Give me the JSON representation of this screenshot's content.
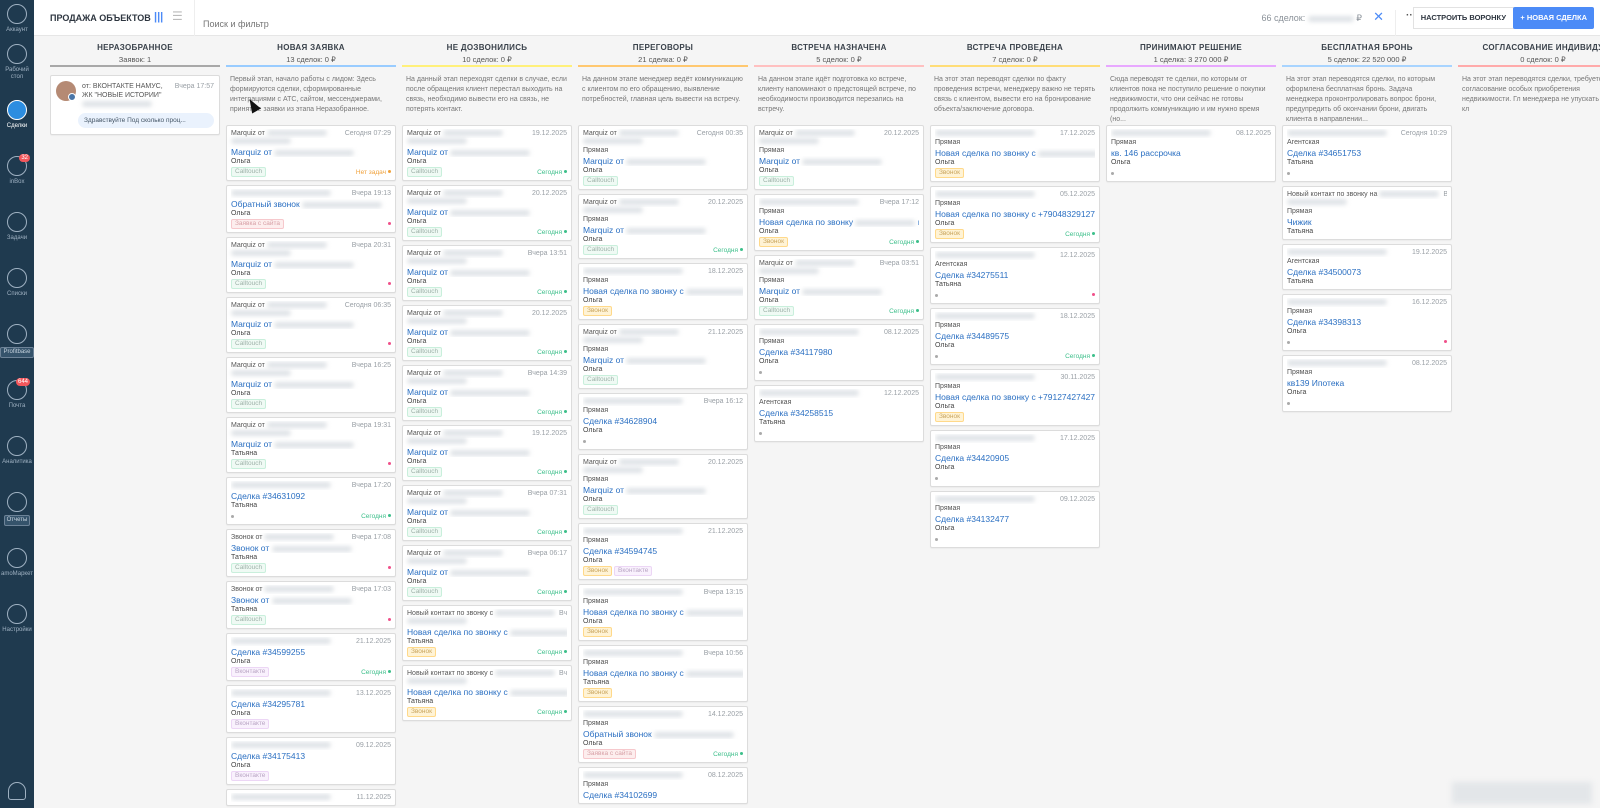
{
  "sidebar": {
    "items": [
      {
        "label": "Аккаунт",
        "icon": "account-icon"
      },
      {
        "label": "Рабочий стол",
        "icon": "dashboard-icon"
      },
      {
        "label": "Сделки",
        "icon": "deals-icon",
        "active": true
      },
      {
        "label": "inBox",
        "icon": "inbox-icon",
        "badge": "32"
      },
      {
        "label": "Задачи",
        "icon": "tasks-icon"
      },
      {
        "label": "Списки",
        "icon": "lists-icon"
      },
      {
        "label": "Profitbase",
        "icon": "profitbase-icon",
        "pill": true
      },
      {
        "label": "Почта",
        "icon": "mail-icon",
        "badge": "644"
      },
      {
        "label": "Аналитика",
        "icon": "analytics-icon"
      },
      {
        "label": "Отчеты",
        "icon": "reports-icon",
        "pill": true
      },
      {
        "label": "amoМаркет",
        "icon": "market-icon"
      },
      {
        "label": "Настройки",
        "icon": "settings-icon"
      }
    ]
  },
  "header": {
    "title": "ПРОДАЖА ОБЪЕКТОВ",
    "search_placeholder": "Поиск и фильтр",
    "total_prefix": "66 сделок:",
    "total_suffix": "₽",
    "more": "···",
    "setup_button": "НАСТРОИТЬ ВОРОНКУ",
    "new_button": "+ НОВАЯ СДЕЛКА"
  },
  "colors": {
    "accent": "#4c8bf7",
    "link": "#2a6fc2",
    "sidebar": "#1f3a4f",
    "today": "#3cbf8a",
    "no_tasks": "#f0a23c",
    "overdue_dot": "#f0508a"
  },
  "unsorted_card": {
    "from": "от: ВКОНТАКТЕ НАМУС, ЖК \"НОВЫЕ ИСТОРИИ\"",
    "date": "Вчера 17:57",
    "message": "Здравствуйте Под сколько проц..."
  },
  "columns": [
    {
      "name": "НЕРАЗОБРАННОЕ",
      "summary": "Заявок: 1",
      "color": "#a8a8a8",
      "description": "",
      "cards": []
    },
    {
      "name": "НОВАЯ ЗАЯВКА",
      "summary": "13 сделок: 0 ₽",
      "color": "#99ccff",
      "description": "Первый этап, начало работы с лидом: Здесь формируются сделки, сформированные интеграциями с АТС, сайтом, мессенджерами, принятые заявки из этапа Неразобранное.",
      "cards": [
        {
          "head": "Marquiz от",
          "extra": true,
          "date": "Сегодня 07:29",
          "title": "Marquiz от",
          "resp": "Ольга",
          "tags": [
            "Calltouch"
          ],
          "status": "none",
          "status_text": "Нет задач"
        },
        {
          "head": "",
          "date": "Вчера 19:13",
          "title": "Обратный звонок",
          "resp": "Ольга",
          "tags": [
            "Заявка с сайта"
          ],
          "status": "dot"
        },
        {
          "head": "Marquiz от",
          "extra": true,
          "date": "Вчера 20:31",
          "title": "Marquiz от",
          "resp": "Ольга",
          "tags": [
            "Calltouch"
          ],
          "status": "dot"
        },
        {
          "head": "Marquiz от",
          "extra": true,
          "date": "Сегодня 06:35",
          "title": "Marquiz от",
          "resp": "Ольга",
          "tags": [
            "Calltouch"
          ],
          "status": "dot"
        },
        {
          "head": "Marquiz от",
          "extra": true,
          "date": "Вчера 16:25",
          "title": "Marquiz от",
          "resp": "Ольга",
          "tags": [
            "Calltouch"
          ],
          "status": ""
        },
        {
          "head": "Marquiz от",
          "extra": true,
          "date": "Вчера 19:31",
          "title": "Marquiz от",
          "resp": "Татьяна",
          "tags": [
            "Calltouch"
          ],
          "status": "dot"
        },
        {
          "head": "",
          "date": "Вчера 17:20",
          "title": "Сделка #34631092",
          "resp": "Татьяна",
          "tags": [],
          "grey_dot": true,
          "status": "today",
          "status_text": "Сегодня"
        },
        {
          "head": "Звонок от",
          "date": "Вчера 17:08",
          "title": "Звонок от",
          "resp": "Татьяна",
          "tags": [
            "Calltouch"
          ],
          "status": "dot"
        },
        {
          "head": "Звонок от",
          "date": "Вчера 17:03",
          "title": "Звонок от",
          "resp": "Татьяна",
          "tags": [
            "Calltouch"
          ],
          "status": "dot"
        },
        {
          "head": "",
          "date": "21.12.2025",
          "title": "Сделка #34599255",
          "resp": "Ольга",
          "tags": [
            "Вконтакте"
          ],
          "status": "today",
          "status_text": "Сегодня"
        },
        {
          "head": "",
          "date": "13.12.2025",
          "title": "Сделка #34295781",
          "resp": "Ольга",
          "tags": [
            "Вконтакте"
          ],
          "status": ""
        },
        {
          "head": "",
          "date": "09.12.2025",
          "title": "Сделка #34175413",
          "resp": "Ольга",
          "tags": [
            "Вконтакте"
          ],
          "status": ""
        },
        {
          "head": "",
          "date": "11.12.2025",
          "title": "",
          "resp": "",
          "tags": [],
          "status": ""
        }
      ]
    },
    {
      "name": "НЕ ДОЗВОНИЛИСЬ",
      "summary": "10 сделок: 0 ₽",
      "color": "#fff07a",
      "description": "На данный этап переходят сделки в случае, если после обращения клиент перестал выходить на связь, необходимо вывести его на связь, не потерять контакт.",
      "cards": [
        {
          "head": "Marquiz от",
          "extra": true,
          "date": "19.12.2025",
          "title": "Marquiz от",
          "resp": "Ольга",
          "tags": [
            "Calltouch"
          ],
          "status": "today",
          "status_text": "Сегодня"
        },
        {
          "head": "Marquiz от",
          "extra": true,
          "date": "20.12.2025",
          "title": "Marquiz от",
          "resp": "Ольга",
          "tags": [
            "Calltouch"
          ],
          "status": "today",
          "status_text": "Сегодня"
        },
        {
          "head": "Marquiz от",
          "extra": true,
          "date": "Вчера 13:51",
          "title": "Marquiz от",
          "resp": "Ольга",
          "tags": [
            "Calltouch"
          ],
          "status": "today",
          "status_text": "Сегодня"
        },
        {
          "head": "Marquiz от",
          "extra": true,
          "date": "20.12.2025",
          "title": "Marquiz от",
          "resp": "Ольга",
          "tags": [
            "Calltouch"
          ],
          "status": "today",
          "status_text": "Сегодня"
        },
        {
          "head": "Marquiz от",
          "extra": true,
          "date": "Вчера 14:39",
          "title": "Marquiz от",
          "resp": "Ольга",
          "tags": [
            "Calltouch"
          ],
          "status": "today",
          "status_text": "Сегодня"
        },
        {
          "head": "Marquiz от",
          "extra": true,
          "date": "19.12.2025",
          "title": "Marquiz от",
          "resp": "Ольга",
          "tags": [
            "Calltouch"
          ],
          "status": "today",
          "status_text": "Сегодня"
        },
        {
          "head": "Marquiz от",
          "extra": true,
          "date": "Вчера 07:31",
          "title": "Marquiz от",
          "resp": "Ольга",
          "tags": [
            "Calltouch"
          ],
          "status": "today",
          "status_text": "Сегодня"
        },
        {
          "head": "Marquiz от",
          "extra": true,
          "date": "Вчера 06:17",
          "title": "Marquiz от",
          "resp": "Ольга",
          "tags": [
            "Calltouch"
          ],
          "status": "today",
          "status_text": "Сегодня"
        },
        {
          "head": "Новый контакт по звонку с",
          "extra": true,
          "date": "Вчера 14:21",
          "title": "Новая сделка по звонку с",
          "title_end": "из...",
          "resp": "Татьяна",
          "tags": [
            "Звонок"
          ],
          "status": "today",
          "status_text": "Сегодня"
        },
        {
          "head": "Новый контакт по звонку с",
          "extra": true,
          "date": "Вчера 13:56",
          "title": "Новая сделка по звонку с",
          "title_end": "из...",
          "resp": "Татьяна",
          "tags": [
            "Звонок"
          ],
          "status": "today",
          "status_text": "Сегодня"
        }
      ]
    },
    {
      "name": "ПЕРЕГОВОРЫ",
      "summary": "21 сделка: 0 ₽",
      "color": "#ffc870",
      "description": "На данном этапе менеджер ведёт коммуникацию с клиентом по его обращению, выявление потребностей, главная цель вывести на встречу.",
      "cards": [
        {
          "head": "Marquiz от",
          "extra": true,
          "date": "Сегодня 00:35",
          "type": "Прямая",
          "title": "Marquiz от",
          "resp": "Ольга",
          "tags": [
            "Calltouch"
          ],
          "status": ""
        },
        {
          "head": "Marquiz от",
          "extra": true,
          "date": "20.12.2025",
          "type": "Прямая",
          "title": "Marquiz от",
          "resp": "Ольга",
          "tags": [
            "Calltouch"
          ],
          "status": "today",
          "status_text": "Сегодня"
        },
        {
          "head": "",
          "date": "18.12.2025",
          "type": "Прямая",
          "title": "Новая сделка по звонку с",
          "title_end": "из...",
          "resp": "Ольга",
          "tags": [
            "Звонок"
          ],
          "status": ""
        },
        {
          "head": "Marquiz от",
          "extra": true,
          "date": "21.12.2025",
          "type": "Прямая",
          "title": "Marquiz от",
          "resp": "Ольга",
          "tags": [
            "Calltouch"
          ],
          "status": ""
        },
        {
          "head": "",
          "date": "Вчера 16:12",
          "type": "Прямая",
          "title": "Сделка #34628904",
          "resp": "Ольга",
          "tags": [],
          "grey_dot": true,
          "status": ""
        },
        {
          "head": "Marquiz от",
          "extra": true,
          "date": "20.12.2025",
          "type": "Прямая",
          "title": "Marquiz от",
          "resp": "Ольга",
          "tags": [
            "Calltouch"
          ],
          "status": ""
        },
        {
          "head": "",
          "date": "21.12.2025",
          "type": "Прямая",
          "title": "Сделка #34594745",
          "resp": "Ольга",
          "tags": [
            "Звонок",
            "Вконтакте"
          ],
          "status": ""
        },
        {
          "head": "",
          "date": "Вчера 13:15",
          "type": "Прямая",
          "title": "Новая сделка по звонку с",
          "title_end": "из...",
          "resp": "Ольга",
          "tags": [
            "Звонок"
          ],
          "status": ""
        },
        {
          "head": "",
          "date": "Вчера 10:56",
          "type": "Прямая",
          "title": "Новая сделка по звонку с",
          "title_end": "из...",
          "resp": "Татьяна",
          "tags": [
            "Звонок"
          ],
          "status": ""
        },
        {
          "head": "",
          "date": "14.12.2025",
          "type": "Прямая",
          "title": "Обратный звонок",
          "resp": "Ольга",
          "tags": [
            "Заявка с сайта"
          ],
          "status": "today",
          "status_text": "Сегодня"
        },
        {
          "head": "",
          "date": "08.12.2025",
          "type": "Прямая",
          "title": "Сделка #34102699",
          "resp": "",
          "tags": [],
          "status": ""
        }
      ]
    },
    {
      "name": "ВСТРЕЧА НАЗНАЧЕНА",
      "summary": "5 сделок: 0 ₽",
      "color": "#ffc0c0",
      "description": "На данном этапе идёт подготовка ко встрече, клиенту напоминают о предстоящей встрече, по необходимости производится перезапись на встречу.",
      "cards": [
        {
          "head": "Marquiz от",
          "extra": true,
          "date": "20.12.2025",
          "type": "Прямая",
          "title": "Marquiz от",
          "resp": "Ольга",
          "tags": [
            "Calltouch"
          ],
          "status": ""
        },
        {
          "head": "",
          "date": "Вчера 17:12",
          "type": "Прямая",
          "title": "Новая сделка по звонку",
          "title_end": "из...",
          "resp": "Ольга",
          "tags": [
            "Звонок"
          ],
          "status": "today",
          "status_text": "Сегодня"
        },
        {
          "head": "Marquiz от",
          "extra": true,
          "date": "Вчера 03:51",
          "type": "Прямая",
          "title": "Marquiz от",
          "resp": "Ольга",
          "tags": [
            "Calltouch"
          ],
          "status": "today",
          "status_text": "Сегодня"
        },
        {
          "head": "",
          "date": "08.12.2025",
          "type": "Прямая",
          "title": "Сделка #34117980",
          "resp": "Ольга",
          "tags": [],
          "grey_dot": true,
          "status": ""
        },
        {
          "head": "",
          "date": "12.12.2025",
          "type": "Агентская",
          "title": "Сделка #34258515",
          "resp": "Татьяна",
          "tags": [],
          "grey_dot": true,
          "status": ""
        }
      ]
    },
    {
      "name": "ВСТРЕЧА ПРОВЕДЕНА",
      "summary": "7 сделок: 0 ₽",
      "color": "#ffdd77",
      "description": "На этот этап переводят сделки по факту проведения встречи, менеджеру важно не терять связь с клиентом, вывести его на бронирование объекта/заключение договора.",
      "cards": [
        {
          "head": "",
          "date": "17.12.2025",
          "type": "Прямая",
          "title": "Новая сделка по звонку с",
          "title_end": "из...",
          "resp": "Ольга",
          "tags": [
            "Звонок"
          ],
          "status": ""
        },
        {
          "head": "",
          "date": "05.12.2025",
          "type": "Прямая",
          "title": "Новая сделка по звонку с +79048329127 из...",
          "full": true,
          "resp": "Ольга",
          "tags": [
            "Звонок"
          ],
          "status": "today",
          "status_text": "Сегодня"
        },
        {
          "head": "",
          "date": "12.12.2025",
          "type": "Агентская",
          "title": "Сделка #34275511",
          "resp": "Татьяна",
          "tags": [],
          "grey_dot": true,
          "status": "dot"
        },
        {
          "head": "",
          "date": "18.12.2025",
          "type": "Прямая",
          "title": "Сделка #34489575",
          "resp": "Ольга",
          "tags": [],
          "grey_dot": true,
          "status": "today",
          "status_text": "Сегодня"
        },
        {
          "head": "",
          "date": "30.11.2025",
          "type": "Прямая",
          "title": "Новая сделка по звонку с +79127427427 из...",
          "full": true,
          "resp": "Ольга",
          "tags": [
            "Звонок"
          ],
          "status": ""
        },
        {
          "head": "",
          "date": "17.12.2025",
          "type": "Прямая",
          "title": "Сделка #34420905",
          "resp": "Ольга",
          "tags": [],
          "grey_dot": true,
          "status": ""
        },
        {
          "head": "",
          "date": "09.12.2025",
          "type": "Прямая",
          "title": "Сделка #34132477",
          "resp": "Ольга",
          "tags": [],
          "grey_dot": true,
          "status": ""
        }
      ]
    },
    {
      "name": "ПРИНИМАЮТ РЕШЕНИЕ",
      "summary": "1 сделка: 3 270 000 ₽",
      "color": "#e8a8ff",
      "description": "Сюда переводят те сделки, по которым от клиентов пока не поступило решение о покупки недвижимости, что они сейчас не готовы продолжить коммуникацию и им нужно время (но...",
      "cards": [
        {
          "head": "",
          "date": "08.12.2025",
          "type": "Прямая",
          "title": "кв. 146 рассрочка",
          "full": true,
          "resp": "Ольга",
          "tags": [],
          "grey_dot": true,
          "status": ""
        }
      ]
    },
    {
      "name": "БЕСПЛАТНАЯ БРОНЬ",
      "summary": "5 сделок: 22 520 000 ₽",
      "color": "#a8d4ff",
      "description": "На этот этап переводятся сделки, по которым оформлена бесплатная бронь. Задача менеджера проконтролировать вопрос брони, предупредить об окончании брони, двигать клиента в направлении...",
      "cards": [
        {
          "head": "",
          "date": "Сегодня 10:29",
          "type": "Агентская",
          "title": "Сделка #34651753",
          "resp": "Татьяна",
          "tags": [],
          "grey_dot": true,
          "status": ""
        },
        {
          "head": "Новый контакт по звонку на",
          "extra": true,
          "date": "Вчера 10:53",
          "type": "Прямая",
          "title": "Чижик",
          "full": true,
          "resp": "Татьяна",
          "tags": [],
          "status": ""
        },
        {
          "head": "",
          "date": "19.12.2025",
          "type": "Агентская",
          "title": "Сделка #34500073",
          "resp": "Татьяна",
          "tags": [],
          "status": ""
        },
        {
          "head": "",
          "date": "16.12.2025",
          "type": "Прямая",
          "title": "Сделка #34398313",
          "resp": "Ольга",
          "tags": [],
          "grey_dot": true,
          "status": "dot"
        },
        {
          "head": "",
          "date": "08.12.2025",
          "type": "Прямая",
          "title": "кв139 Ипотека",
          "full": true,
          "resp": "Ольга",
          "tags": [],
          "grey_dot": true,
          "status": ""
        }
      ]
    },
    {
      "name": "СОГЛАСОВАНИЕ ИНДИВИДУ",
      "summary": "0 сделок: 0 ₽",
      "color": "#ffaaaa",
      "description": "На этот этап переводятся сделки, требуется согласование особых приобретения недвижимости. Гл менеджера не упускать таких кл",
      "cards": []
    }
  ]
}
